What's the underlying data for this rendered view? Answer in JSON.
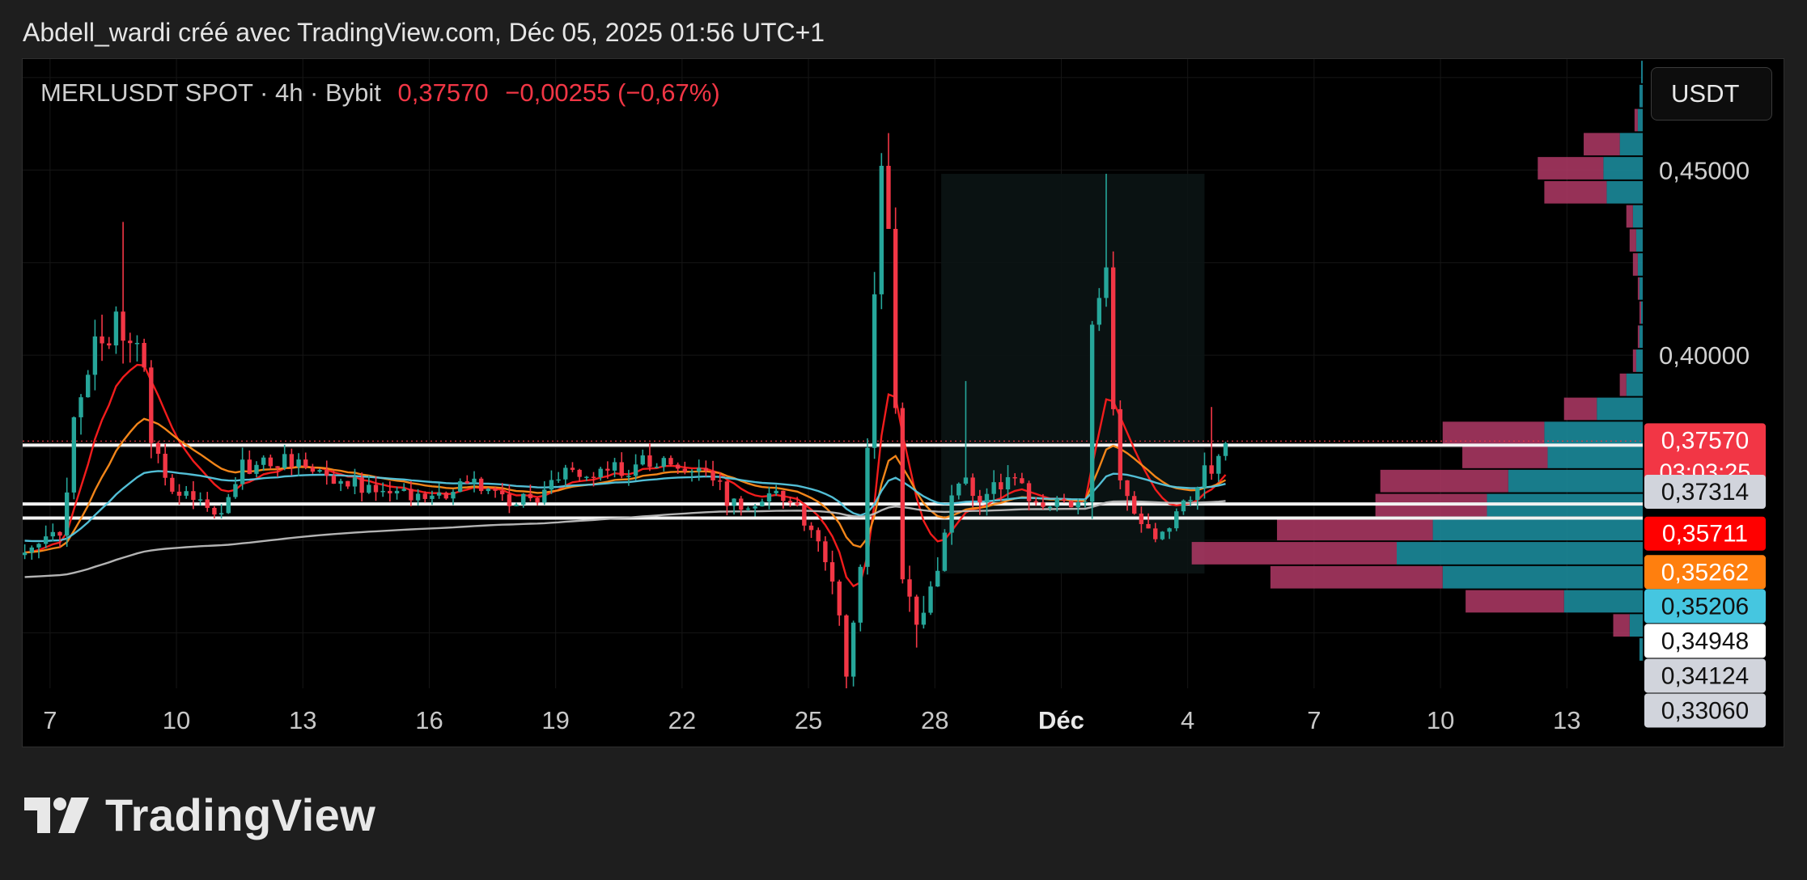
{
  "caption": "Abdell_wardi créé avec TradingView.com, Déc 05, 2025 01:56 UTC+1",
  "legend": {
    "symbol": "MERLUSDT SPOT · 4h · Bybit",
    "price": "0,37570",
    "change": "−0,00255 (−0,67%)"
  },
  "currency_button": "USDT",
  "brand": "TradingView",
  "colors": {
    "up": "#26a69a",
    "down": "#f23645",
    "ema_fast": "#ff1e1e",
    "ema_mid": "#ff8c1a",
    "ema_slow": "#56c8e0",
    "ema_long": "#bdbdbd",
    "volume_profile_up": "#1b8a9a",
    "volume_profile_down": "#b03a66"
  },
  "chart_data": {
    "type": "candlestick",
    "interval": "4h",
    "y_axis": {
      "min": 0.31,
      "max": 0.48,
      "tick_labels": [
        "0,40000",
        "0,45000"
      ],
      "tick_values": [
        0.4,
        0.45
      ]
    },
    "x_axis": {
      "tick_labels": [
        "7",
        "10",
        "13",
        "16",
        "19",
        "22",
        "25",
        "28",
        "Déc",
        "4",
        "7",
        "10",
        "13"
      ],
      "tick_days": [
        7,
        10,
        13,
        16,
        19,
        22,
        25,
        28,
        31,
        34,
        37,
        40,
        43
      ],
      "day_range": [
        6.35,
        44.8
      ]
    },
    "price_path_anchors": [
      [
        6.4,
        0.346,
        0.003
      ],
      [
        7.3,
        0.352,
        0.004
      ],
      [
        7.6,
        0.385,
        0.006
      ],
      [
        8.1,
        0.405,
        0.007
      ],
      [
        8.7,
        0.41,
        0.008
      ],
      [
        9.1,
        0.405,
        0.006
      ],
      [
        9.4,
        0.378,
        0.005
      ],
      [
        9.7,
        0.366,
        0.003
      ],
      [
        10.5,
        0.362,
        0.003
      ],
      [
        11.0,
        0.358,
        0.003
      ],
      [
        11.6,
        0.37,
        0.004
      ],
      [
        12.5,
        0.372,
        0.003
      ],
      [
        13.6,
        0.368,
        0.003
      ],
      [
        14.8,
        0.362,
        0.003
      ],
      [
        16.0,
        0.362,
        0.003
      ],
      [
        17.0,
        0.365,
        0.003
      ],
      [
        18.3,
        0.36,
        0.003
      ],
      [
        19.2,
        0.368,
        0.003
      ],
      [
        20.4,
        0.369,
        0.003
      ],
      [
        21.4,
        0.372,
        0.004
      ],
      [
        22.4,
        0.37,
        0.003
      ],
      [
        23.2,
        0.36,
        0.003
      ],
      [
        24.4,
        0.362,
        0.003
      ],
      [
        25.0,
        0.355,
        0.003
      ],
      [
        25.6,
        0.338,
        0.005
      ],
      [
        25.9,
        0.312,
        0.004
      ],
      [
        26.3,
        0.345,
        0.006
      ],
      [
        26.7,
        0.455,
        0.01
      ],
      [
        26.9,
        0.44,
        0.01
      ],
      [
        27.2,
        0.347,
        0.008
      ],
      [
        27.6,
        0.33,
        0.006
      ],
      [
        28.1,
        0.343,
        0.004
      ],
      [
        28.6,
        0.37,
        0.005
      ],
      [
        29.0,
        0.363,
        0.004
      ],
      [
        29.8,
        0.365,
        0.004
      ],
      [
        30.6,
        0.361,
        0.003
      ],
      [
        31.3,
        0.358,
        0.003
      ],
      [
        31.6,
        0.362,
        0.003
      ],
      [
        31.75,
        0.41,
        0.008
      ],
      [
        32.05,
        0.43,
        0.008
      ],
      [
        32.35,
        0.365,
        0.005
      ],
      [
        32.8,
        0.353,
        0.004
      ],
      [
        33.3,
        0.351,
        0.003
      ],
      [
        33.9,
        0.36,
        0.003
      ],
      [
        34.4,
        0.368,
        0.004
      ],
      [
        34.8,
        0.372,
        0.003
      ],
      [
        35.0,
        0.376,
        0.003
      ]
    ],
    "emas": [
      {
        "name": "ema-fast",
        "period": 9
      },
      {
        "name": "ema-mid",
        "period": 21
      },
      {
        "name": "ema-slow",
        "period": 50
      },
      {
        "name": "ema-long",
        "period": 200
      }
    ],
    "horizontal_lines": [
      0.3757,
      0.3598,
      0.356
    ],
    "current_price_line": 0.3757,
    "range_box": {
      "day_from": 28.15,
      "day_to": 34.4,
      "price_from": 0.341,
      "price_to": 0.449
    },
    "volume_profile": [
      {
        "price": 0.4765,
        "up": 1,
        "down": 0
      },
      {
        "price": 0.47,
        "up": 2,
        "down": 0
      },
      {
        "price": 0.4635,
        "up": 3,
        "down": 2
      },
      {
        "price": 0.457,
        "up": 14,
        "down": 22
      },
      {
        "price": 0.4505,
        "up": 24,
        "down": 40
      },
      {
        "price": 0.444,
        "up": 22,
        "down": 38
      },
      {
        "price": 0.4375,
        "up": 6,
        "down": 4
      },
      {
        "price": 0.431,
        "up": 4,
        "down": 4
      },
      {
        "price": 0.4245,
        "up": 3,
        "down": 3
      },
      {
        "price": 0.418,
        "up": 2,
        "down": 1
      },
      {
        "price": 0.4115,
        "up": 1,
        "down": 1
      },
      {
        "price": 0.405,
        "up": 2,
        "down": 1
      },
      {
        "price": 0.3985,
        "up": 4,
        "down": 2
      },
      {
        "price": 0.392,
        "up": 10,
        "down": 4
      },
      {
        "price": 0.3855,
        "up": 28,
        "down": 20
      },
      {
        "price": 0.379,
        "up": 60,
        "down": 62
      },
      {
        "price": 0.3725,
        "up": 58,
        "down": 52
      },
      {
        "price": 0.366,
        "up": 82,
        "down": 78
      },
      {
        "price": 0.3595,
        "up": 95,
        "down": 68
      },
      {
        "price": 0.353,
        "up": 128,
        "down": 95
      },
      {
        "price": 0.3465,
        "up": 150,
        "down": 125
      },
      {
        "price": 0.34,
        "up": 122,
        "down": 105
      },
      {
        "price": 0.3335,
        "up": 48,
        "down": 60
      },
      {
        "price": 0.327,
        "up": 8,
        "down": 10
      },
      {
        "price": 0.3205,
        "up": 2,
        "down": 0
      }
    ],
    "price_labels": [
      {
        "text": "0,37570",
        "sub": "03:03:25",
        "value": 0.3757,
        "bg": "#f23645",
        "fg": "#ffffff"
      },
      {
        "text": "0,37314",
        "value": 0.3631,
        "bg": "#d1d4dc",
        "fg": "#111111"
      },
      {
        "text": "0,35711",
        "value": 0.3518,
        "bg": "#ff0000",
        "fg": "#ffffff"
      },
      {
        "text": "0,35262",
        "value": 0.3414,
        "bg": "#ff7f0e",
        "fg": "#ffffff"
      },
      {
        "text": "0,35206",
        "value": 0.3322,
        "bg": "#45c6e0",
        "fg": "#111111"
      },
      {
        "text": "0,34948",
        "value": 0.3228,
        "bg": "#ffffff",
        "fg": "#111111"
      },
      {
        "text": "0,34124",
        "value": 0.3134,
        "bg": "#d1d4dc",
        "fg": "#111111"
      },
      {
        "text": "0,33060",
        "value": 0.304,
        "bg": "#d1d4dc",
        "fg": "#111111"
      }
    ]
  }
}
